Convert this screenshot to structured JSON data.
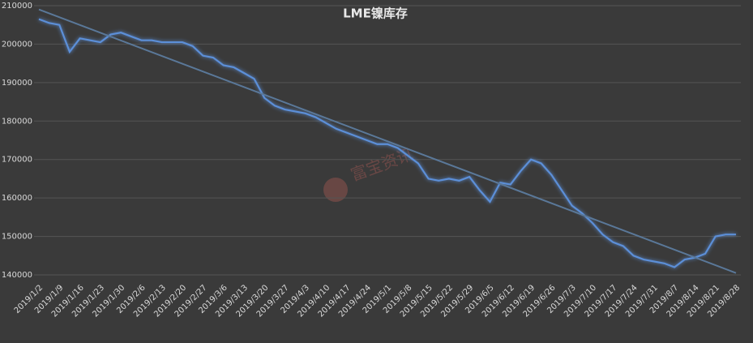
{
  "chart_data": {
    "type": "line",
    "title": "LME镍库存",
    "annotations": [
      "富宝资讯"
    ],
    "categories": [
      "2019/1/2",
      null,
      "2019/1/9",
      null,
      "2019/1/16",
      null,
      "2019/1/23",
      null,
      "2019/1/30",
      null,
      "2019/2/6",
      null,
      "2019/2/13",
      null,
      "2019/2/20",
      null,
      "2019/2/27",
      null,
      "2019/3/6",
      null,
      "2019/3/13",
      null,
      "2019/3/20",
      null,
      "2019/3/27",
      null,
      "2019/4/3",
      null,
      "2019/4/10",
      null,
      "2019/4/17",
      null,
      "2019/4/24",
      null,
      "2019/5/1",
      null,
      "2019/5/8",
      null,
      "2019/5/15",
      null,
      "2019/5/22",
      null,
      "2019/5/29",
      null,
      "2019/6/5",
      null,
      "2019/6/12",
      null,
      "2019/6/19",
      null,
      "2019/6/26",
      null,
      "2019/7/3",
      null,
      "2019/7/10",
      null,
      "2019/7/17",
      null,
      "2019/7/24",
      null,
      "2019/7/31",
      null,
      "2019/8/7",
      null,
      "2019/8/14",
      null,
      "2019/8/21",
      null,
      "2019/8/28"
    ],
    "series": [
      {
        "color": "#5b8fd8",
        "values": [
          206500,
          205500,
          205000,
          198000,
          201500,
          201000,
          200500,
          202500,
          203000,
          202000,
          201000,
          201000,
          200500,
          200500,
          200500,
          199500,
          197000,
          196500,
          194500,
          194000,
          192500,
          191000,
          186000,
          184000,
          183000,
          182500,
          182000,
          181000,
          179500,
          178000,
          177000,
          176000,
          175000,
          174000,
          174000,
          173000,
          171000,
          169000,
          165000,
          164500,
          165000,
          164500,
          165500,
          162000,
          159000,
          164000,
          163500,
          167000,
          170000,
          169000,
          166000,
          162000,
          158000,
          156000,
          153500,
          150500,
          148500,
          147500,
          145000,
          144000,
          143500,
          143000,
          142000,
          144000,
          144500,
          145500,
          150000,
          150500,
          150500
        ]
      }
    ],
    "trendline": {
      "color": "#5a7899",
      "values": [
        209000,
        140500
      ]
    },
    "ylim": [
      140000,
      210000
    ],
    "yticks": [
      140000,
      150000,
      160000,
      170000,
      180000,
      190000,
      200000,
      210000
    ],
    "grid": true
  }
}
